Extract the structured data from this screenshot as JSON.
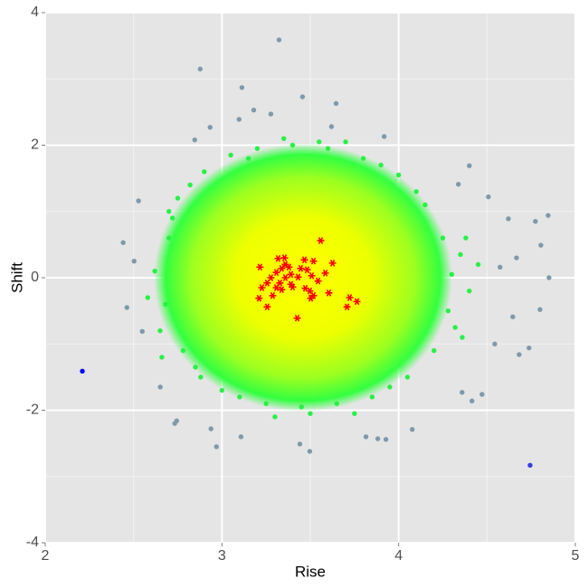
{
  "chart_data": {
    "type": "scatter",
    "x_label": "Rise",
    "y_label": "Shift",
    "xlim": [
      2,
      5
    ],
    "ylim": [
      -4,
      4
    ],
    "xticks": [
      2,
      3,
      4,
      5
    ],
    "yticks": [
      -4,
      -2,
      0,
      2,
      4
    ],
    "x_minor_gridlines": [
      2.5,
      3.5,
      4.5
    ],
    "y_minor_gridlines": [
      -3,
      -1,
      1,
      3
    ],
    "grid": true,
    "series": [
      {
        "color": "#7f99aa",
        "marker": "dot",
        "x": [
          3.323,
          2.877,
          3.113,
          3.456,
          3.646,
          3.18,
          3.277,
          3.097,
          2.933,
          3.62,
          3.918,
          2.846,
          4.4,
          4.338,
          4.508,
          2.528,
          4.846,
          4.621,
          4.774,
          2.441,
          4.805,
          4.667,
          4.851,
          2.503,
          4.574,
          2.462,
          2.549,
          4.8,
          4.646,
          4.738,
          4.682,
          4.544,
          2.651,
          2.733,
          2.744,
          2.938,
          2.969,
          3.108,
          3.441,
          3.497,
          4.077,
          3.815,
          3.882,
          3.928,
          4.472,
          4.415,
          4.359
        ],
        "values": [
          3.59,
          3.15,
          2.87,
          2.73,
          2.63,
          2.53,
          2.47,
          2.39,
          2.27,
          2.28,
          2.13,
          2.08,
          1.69,
          1.41,
          1.22,
          1.16,
          0.94,
          0.89,
          0.85,
          0.53,
          0.49,
          0.3,
          0.0,
          0.25,
          0.16,
          -0.45,
          -0.81,
          -0.48,
          -0.59,
          -1.06,
          -1.16,
          -1.0,
          -1.65,
          -2.2,
          -2.16,
          -2.28,
          -2.55,
          -2.4,
          -2.51,
          -2.62,
          -2.29,
          -2.4,
          -2.43,
          -2.44,
          -1.76,
          -1.86,
          -1.73
        ]
      },
      {
        "color": "#28f046",
        "marker": "dot",
        "x": [
          2.7,
          2.68,
          2.75,
          2.78,
          2.9,
          2.88,
          3.05,
          3.0,
          3.2,
          3.25,
          3.4,
          3.45,
          3.6,
          3.65,
          3.8,
          3.85,
          4.0,
          4.05,
          4.15,
          4.2,
          4.25,
          4.28,
          4.3,
          2.62,
          2.65,
          2.72,
          4.35,
          4.32,
          4.1,
          2.82,
          2.85,
          3.1,
          3.15,
          3.55,
          3.5,
          3.9,
          3.95,
          4.4,
          2.58,
          4.45,
          4.38,
          4.36,
          2.66,
          2.7,
          3.3,
          3.7,
          3.35,
          3.75
        ],
        "values": [
          0.6,
          -0.4,
          1.2,
          -1.1,
          1.6,
          -1.5,
          1.85,
          -1.7,
          1.95,
          -1.9,
          2.0,
          -1.95,
          1.95,
          -1.9,
          1.8,
          -1.8,
          1.55,
          -1.5,
          1.1,
          -1.1,
          0.6,
          -0.5,
          0.05,
          0.1,
          -0.8,
          0.9,
          0.35,
          -0.75,
          1.3,
          1.4,
          -1.35,
          -1.8,
          1.8,
          2.05,
          -2.05,
          1.7,
          -1.65,
          -0.2,
          -0.3,
          0.2,
          0.6,
          -0.9,
          -1.2,
          1.0,
          -2.1,
          2.05,
          2.1,
          -2.05
        ]
      },
      {
        "color": "#0000ff",
        "marker": "dot",
        "x": [
          2.21
        ],
        "values": [
          -1.41
        ]
      },
      {
        "color": "#3a3ae0",
        "marker": "dot",
        "x": [
          4.744
        ],
        "values": [
          -2.83
        ]
      },
      {
        "color": "#ff0000",
        "marker": "asterisk",
        "x": [
          3.559,
          3.318,
          3.354,
          3.467,
          3.518,
          3.626,
          3.215,
          3.338,
          3.379,
          3.446,
          3.482,
          3.308,
          3.39,
          3.585,
          3.277,
          3.359,
          3.431,
          3.508,
          3.256,
          3.328,
          3.4,
          3.544,
          3.226,
          3.308,
          3.338,
          3.472,
          3.605,
          3.518,
          3.287,
          3.723,
          3.503,
          3.764,
          3.21,
          3.256,
          3.708,
          3.426,
          3.39,
          3.359,
          3.497
        ],
        "values": [
          0.56,
          0.29,
          0.3,
          0.27,
          0.25,
          0.22,
          0.16,
          0.14,
          0.16,
          0.14,
          0.12,
          0.08,
          0.05,
          0.07,
          0.0,
          0.0,
          0.01,
          0.03,
          -0.08,
          -0.08,
          -0.14,
          -0.05,
          -0.15,
          -0.15,
          -0.18,
          -0.16,
          -0.23,
          -0.27,
          -0.27,
          -0.3,
          -0.31,
          -0.36,
          -0.31,
          -0.44,
          -0.44,
          -0.61,
          -0.1,
          0.2,
          -0.2
        ]
      }
    ]
  }
}
